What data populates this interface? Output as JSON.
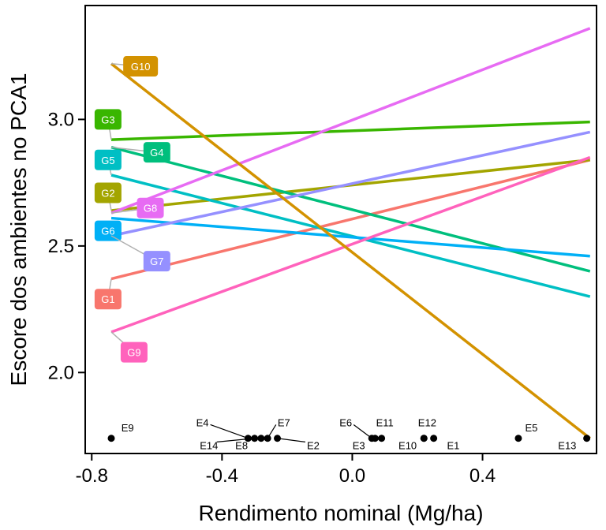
{
  "chart_data": {
    "type": "line",
    "xlabel": "Rendimento nominal (Mg/ha)",
    "ylabel": "Escore dos ambientes no PCA1",
    "xlim": [
      -0.82,
      0.75
    ],
    "ylim": [
      1.68,
      3.45
    ],
    "xticks": [
      -0.8,
      -0.4,
      0.0,
      0.4
    ],
    "xtick_labels": [
      "-0.8",
      "-0.4",
      "0.0",
      "0.4"
    ],
    "yticks": [
      2.0,
      2.5,
      3.0
    ],
    "ytick_labels": [
      "2.0",
      "2.5",
      "3.0"
    ],
    "grid": false,
    "legend": "none",
    "series": [
      {
        "name": "G1",
        "color": "#F8766D",
        "x": [
          -0.74,
          0.73
        ],
        "y": [
          2.37,
          2.84
        ],
        "label_pos": [
          -0.75,
          2.29
        ]
      },
      {
        "name": "G2",
        "color": "#A3A500",
        "x": [
          -0.74,
          0.73
        ],
        "y": [
          2.64,
          2.84
        ],
        "label_pos": [
          -0.75,
          2.71
        ]
      },
      {
        "name": "G3",
        "color": "#39B600",
        "x": [
          -0.74,
          0.73
        ],
        "y": [
          2.92,
          2.99
        ],
        "label_pos": [
          -0.75,
          3.0
        ]
      },
      {
        "name": "G4",
        "color": "#00BF7D",
        "x": [
          -0.74,
          0.73
        ],
        "y": [
          2.89,
          2.4
        ],
        "label_pos": [
          -0.6,
          2.87
        ]
      },
      {
        "name": "G5",
        "color": "#00BFC4",
        "x": [
          -0.74,
          0.73
        ],
        "y": [
          2.78,
          2.3
        ],
        "label_pos": [
          -0.75,
          2.84
        ]
      },
      {
        "name": "G6",
        "color": "#00B0F6",
        "x": [
          -0.74,
          0.73
        ],
        "y": [
          2.61,
          2.46
        ],
        "label_pos": [
          -0.75,
          2.56
        ]
      },
      {
        "name": "G7",
        "color": "#9590FF",
        "x": [
          -0.74,
          0.73
        ],
        "y": [
          2.54,
          2.95
        ],
        "label_pos": [
          -0.6,
          2.44
        ]
      },
      {
        "name": "G8",
        "color": "#E76BF3",
        "x": [
          -0.74,
          0.73
        ],
        "y": [
          2.63,
          3.36
        ],
        "label_pos": [
          -0.62,
          2.65
        ]
      },
      {
        "name": "G9",
        "color": "#FF62BC",
        "x": [
          -0.74,
          0.73
        ],
        "y": [
          2.16,
          2.85
        ],
        "label_pos": [
          -0.67,
          2.08
        ]
      },
      {
        "name": "G10",
        "color": "#D39200",
        "x": [
          -0.74,
          0.73
        ],
        "y": [
          3.22,
          1.74
        ],
        "label_pos": [
          -0.65,
          3.21
        ]
      }
    ],
    "environments": [
      {
        "name": "E9",
        "x": -0.74,
        "y": 1.74,
        "label_pos": [
          -0.69,
          1.78
        ]
      },
      {
        "name": "E4",
        "x": -0.32,
        "y": 1.74,
        "label_pos": [
          -0.46,
          1.8
        ]
      },
      {
        "name": "E14",
        "x": -0.3,
        "y": 1.74,
        "label_pos": [
          -0.44,
          1.71
        ]
      },
      {
        "name": "E8",
        "x": -0.28,
        "y": 1.74,
        "label_pos": [
          -0.34,
          1.71
        ]
      },
      {
        "name": "E7",
        "x": -0.26,
        "y": 1.74,
        "label_pos": [
          -0.21,
          1.8
        ]
      },
      {
        "name": "E2",
        "x": -0.23,
        "y": 1.74,
        "label_pos": [
          -0.12,
          1.71
        ]
      },
      {
        "name": "E6",
        "x": 0.06,
        "y": 1.74,
        "label_pos": [
          -0.02,
          1.8
        ]
      },
      {
        "name": "E3",
        "x": 0.07,
        "y": 1.74,
        "label_pos": [
          0.02,
          1.71
        ]
      },
      {
        "name": "E11",
        "x": 0.09,
        "y": 1.74,
        "label_pos": [
          0.1,
          1.8
        ]
      },
      {
        "name": "E12",
        "x": 0.22,
        "y": 1.74,
        "label_pos": [
          0.23,
          1.8
        ]
      },
      {
        "name": "E10",
        "x": 0.22,
        "y": 1.74,
        "label_pos": [
          0.17,
          1.71
        ]
      },
      {
        "name": "E1",
        "x": 0.25,
        "y": 1.74,
        "label_pos": [
          0.31,
          1.71
        ]
      },
      {
        "name": "E5",
        "x": 0.51,
        "y": 1.74,
        "label_pos": [
          0.55,
          1.78
        ]
      },
      {
        "name": "E13",
        "x": 0.72,
        "y": 1.74,
        "label_pos": [
          0.66,
          1.71
        ]
      }
    ]
  }
}
